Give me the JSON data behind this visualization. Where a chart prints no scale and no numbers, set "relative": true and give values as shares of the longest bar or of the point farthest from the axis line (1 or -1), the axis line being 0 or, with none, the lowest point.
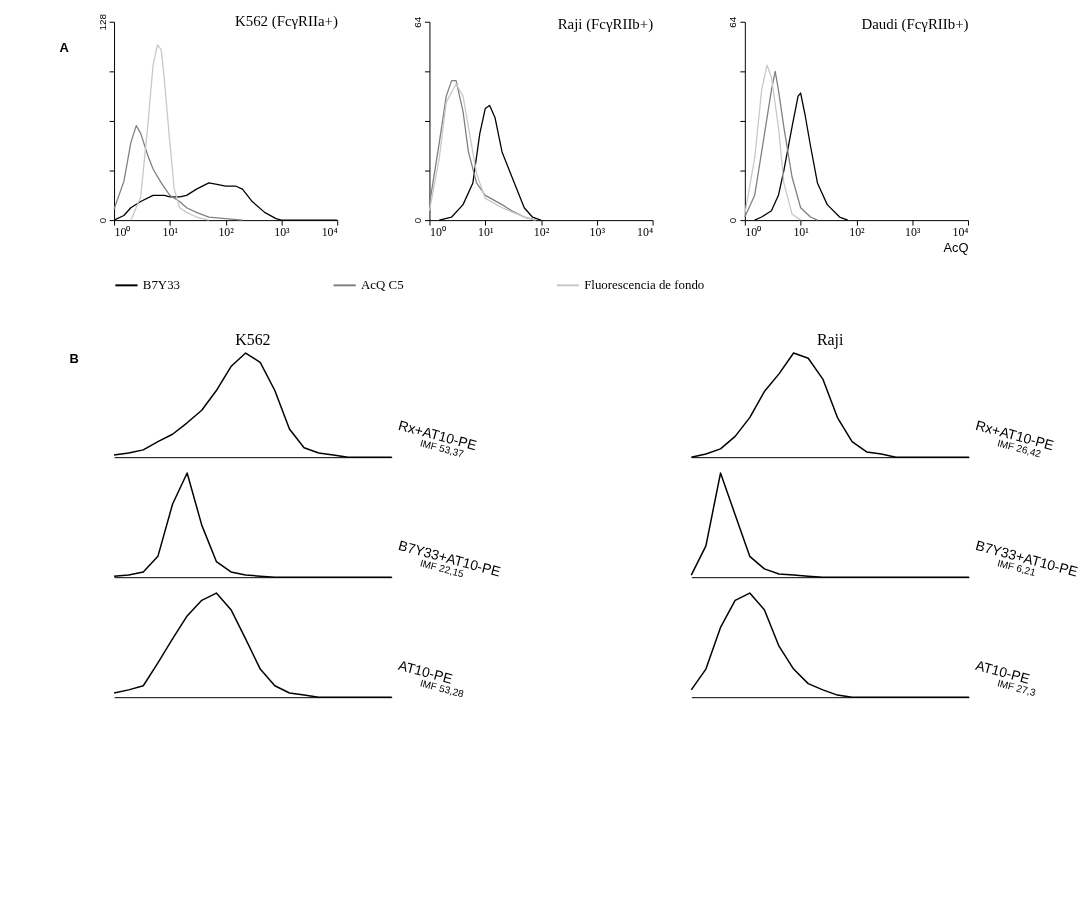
{
  "chart_data": [
    {
      "type": "line",
      "title": "K562  (FcγRIIa+)",
      "annotations": [
        "A"
      ],
      "log": "x",
      "legend": "bottom",
      "grid": false,
      "xlim": [
        1,
        10000
      ],
      "xticks": [
        {
          "value": 1,
          "label": "10⁰"
        },
        {
          "value": 10,
          "label": "10¹"
        },
        {
          "value": 100,
          "label": "10²"
        },
        {
          "value": 1000,
          "label": "10³"
        },
        {
          "value": 10000,
          "label": "10⁴"
        }
      ],
      "ylim": [
        0,
        128
      ],
      "yticks": [
        0,
        {
          "value": 32,
          "label": null
        },
        {
          "value": 64,
          "label": null
        },
        {
          "value": 96,
          "label": null
        },
        128
      ],
      "series": [
        {
          "name": "B7Y33",
          "color": "#000000",
          "x": [
            1,
            1.5,
            2,
            3,
            5,
            8,
            10,
            15,
            20,
            30,
            50,
            70,
            100,
            150,
            200,
            300,
            500,
            800,
            1000,
            10000
          ],
          "values": [
            0,
            3,
            8,
            12,
            16,
            16,
            15,
            15,
            16,
            20,
            24,
            23,
            22,
            22,
            20,
            12,
            5,
            1,
            0,
            0
          ]
        },
        {
          "name": "AcQ C5",
          "color": "#808080",
          "x": [
            1,
            1.5,
            2,
            2.5,
            3,
            4,
            5,
            7,
            10,
            15,
            20,
            30,
            50,
            100,
            200
          ],
          "values": [
            7,
            25,
            50,
            61,
            56,
            42,
            33,
            24,
            16,
            12,
            8,
            5,
            2,
            1,
            0
          ]
        },
        {
          "name": "Fluorescencia de fondo",
          "color": "#c8c8c8",
          "x": [
            2,
            3,
            4,
            5,
            6,
            7,
            8,
            10,
            12,
            15,
            20,
            30,
            50
          ],
          "values": [
            0,
            15,
            60,
            100,
            113,
            110,
            90,
            50,
            20,
            8,
            5,
            2,
            0
          ]
        }
      ]
    },
    {
      "type": "line",
      "title": "Raji   (FcγRIIb+)",
      "log": "x",
      "legend": "bottom",
      "grid": false,
      "xlim": [
        1,
        10000
      ],
      "xticks": [
        {
          "value": 1,
          "label": "10⁰"
        },
        {
          "value": 10,
          "label": "10¹"
        },
        {
          "value": 100,
          "label": "10²"
        },
        {
          "value": 1000,
          "label": "10³"
        },
        {
          "value": 10000,
          "label": "10⁴"
        }
      ],
      "ylim": [
        0,
        64
      ],
      "yticks": [
        0,
        {
          "value": 16,
          "label": null
        },
        {
          "value": 32,
          "label": null
        },
        {
          "value": 48,
          "label": null
        },
        64
      ],
      "series": [
        {
          "name": "B7Y33",
          "color": "#000000",
          "x": [
            1.5,
            2.5,
            4,
            6,
            8,
            10,
            12,
            15,
            20,
            30,
            50,
            70,
            100
          ],
          "values": [
            0,
            1,
            5,
            12,
            28,
            36,
            37,
            33,
            22,
            14,
            4,
            1,
            0
          ]
        },
        {
          "name": "AcQ C5",
          "color": "#808080",
          "x": [
            1,
            1.5,
            2,
            2.5,
            3,
            4,
            5,
            7,
            10,
            20,
            30,
            50,
            80
          ],
          "values": [
            5,
            25,
            40,
            45,
            45,
            35,
            22,
            12,
            8,
            5,
            3,
            1,
            0
          ]
        },
        {
          "name": "Fluorescencia de fondo",
          "color": "#c8c8c8",
          "x": [
            1,
            1.5,
            2,
            3,
            4,
            5,
            7,
            10,
            20,
            50,
            80
          ],
          "values": [
            3,
            20,
            38,
            44,
            40,
            30,
            15,
            7,
            4,
            1,
            0
          ]
        }
      ]
    },
    {
      "type": "line",
      "title": "Daudi   (FcγRIIb+)",
      "xlabel": "AcQ",
      "log": "x",
      "legend": "bottom",
      "grid": false,
      "xlim": [
        1,
        10000
      ],
      "xticks": [
        {
          "value": 1,
          "label": "10⁰"
        },
        {
          "value": 10,
          "label": "10¹"
        },
        {
          "value": 100,
          "label": "10²"
        },
        {
          "value": 1000,
          "label": "10³"
        },
        {
          "value": 10000,
          "label": "10⁴"
        }
      ],
      "ylim": [
        0,
        64
      ],
      "yticks": [
        0,
        {
          "value": 16,
          "label": null
        },
        {
          "value": 32,
          "label": null
        },
        {
          "value": 48,
          "label": null
        },
        64
      ],
      "series": [
        {
          "name": "B7Y33",
          "color": "#000000",
          "x": [
            1.5,
            2,
            3,
            4,
            5,
            7,
            9,
            10,
            12,
            15,
            20,
            30,
            50,
            70
          ],
          "values": [
            0,
            1,
            3,
            8,
            16,
            30,
            40,
            41,
            34,
            24,
            12,
            5,
            1,
            0
          ]
        },
        {
          "name": "AcQ C5",
          "color": "#808080",
          "x": [
            1,
            1.5,
            2,
            3,
            3.5,
            4,
            5,
            7,
            10,
            15,
            20
          ],
          "values": [
            1,
            8,
            22,
            42,
            48,
            42,
            30,
            14,
            4,
            1,
            0
          ]
        },
        {
          "name": "Fluorescencia de fondo",
          "color": "#c8c8c8",
          "x": [
            1,
            1.5,
            2,
            2.5,
            3,
            4,
            5,
            7,
            10
          ],
          "values": [
            2,
            20,
            42,
            50,
            46,
            30,
            12,
            2,
            0
          ]
        }
      ]
    },
    {
      "type": "line",
      "title": "K562",
      "annotations": [
        "B",
        "IMF 53,37"
      ],
      "relative": true,
      "tick_labels": false,
      "categories": [
        null,
        null,
        null,
        null,
        null,
        null,
        null,
        null,
        null,
        null,
        null,
        null,
        null,
        null,
        null,
        null,
        null,
        null,
        null,
        null
      ],
      "series": [
        {
          "name": "Rx+AT10-PE",
          "color": "#000000",
          "values": [
            0.02,
            0.04,
            0.07,
            0.15,
            0.22,
            0.33,
            0.45,
            0.64,
            0.87,
            1.0,
            0.91,
            0.64,
            0.27,
            0.09,
            0.04,
            0.02,
            0,
            0,
            0,
            0
          ]
        }
      ]
    },
    {
      "type": "line",
      "annotations": [
        "IMF 22,15"
      ],
      "relative": true,
      "tick_labels": false,
      "categories": [
        null,
        null,
        null,
        null,
        null,
        null,
        null,
        null,
        null,
        null,
        null,
        null,
        null,
        null,
        null,
        null,
        null,
        null,
        null,
        null
      ],
      "series": [
        {
          "name": "B7Y33+AT10-PE",
          "color": "#000000",
          "values": [
            0.01,
            0.02,
            0.05,
            0.2,
            0.7,
            1.0,
            0.5,
            0.15,
            0.05,
            0.02,
            0.01,
            0,
            0,
            0,
            0,
            0,
            0,
            0,
            0,
            0
          ]
        }
      ]
    },
    {
      "type": "line",
      "annotations": [
        "IMF 53,28"
      ],
      "relative": true,
      "tick_labels": false,
      "categories": [
        null,
        null,
        null,
        null,
        null,
        null,
        null,
        null,
        null,
        null,
        null,
        null,
        null,
        null,
        null,
        null,
        null,
        null,
        null,
        null
      ],
      "series": [
        {
          "name": "AT10-PE",
          "color": "#000000",
          "values": [
            0.04,
            0.07,
            0.11,
            0.33,
            0.56,
            0.78,
            0.93,
            1.0,
            0.84,
            0.56,
            0.27,
            0.11,
            0.04,
            0.02,
            0,
            0,
            0,
            0,
            0,
            0
          ]
        }
      ]
    },
    {
      "type": "line",
      "title": "Raji",
      "annotations": [
        "IMF 26,42"
      ],
      "relative": true,
      "tick_labels": false,
      "categories": [
        null,
        null,
        null,
        null,
        null,
        null,
        null,
        null,
        null,
        null,
        null,
        null,
        null,
        null,
        null,
        null,
        null,
        null,
        null,
        null
      ],
      "series": [
        {
          "name": "Rx+AT10-PE",
          "color": "#000000",
          "values": [
            0,
            0.03,
            0.08,
            0.2,
            0.38,
            0.63,
            0.8,
            1.0,
            0.95,
            0.75,
            0.38,
            0.15,
            0.05,
            0.03,
            0,
            0,
            0,
            0,
            0,
            0
          ]
        }
      ]
    },
    {
      "type": "line",
      "annotations": [
        "IMF 6,21"
      ],
      "relative": true,
      "tick_labels": false,
      "categories": [
        null,
        null,
        null,
        null,
        null,
        null,
        null,
        null,
        null,
        null,
        null,
        null,
        null,
        null,
        null,
        null,
        null,
        null,
        null,
        null
      ],
      "series": [
        {
          "name": "B7Y33+AT10-PE",
          "color": "#000000",
          "values": [
            0.02,
            0.3,
            1.0,
            0.6,
            0.2,
            0.08,
            0.03,
            0.02,
            0.01,
            0,
            0,
            0,
            0,
            0,
            0,
            0,
            0,
            0,
            0,
            0
          ]
        }
      ]
    },
    {
      "type": "line",
      "annotations": [
        "IMF 27,3"
      ],
      "relative": true,
      "tick_labels": false,
      "categories": [
        null,
        null,
        null,
        null,
        null,
        null,
        null,
        null,
        null,
        null,
        null,
        null,
        null,
        null,
        null,
        null,
        null,
        null,
        null,
        null
      ],
      "series": [
        {
          "name": "AT10-PE",
          "color": "#000000",
          "values": [
            0.07,
            0.27,
            0.67,
            0.93,
            1.0,
            0.84,
            0.49,
            0.27,
            0.13,
            0.07,
            0.02,
            0,
            0,
            0,
            0,
            0,
            0,
            0,
            0,
            0
          ]
        }
      ]
    }
  ]
}
